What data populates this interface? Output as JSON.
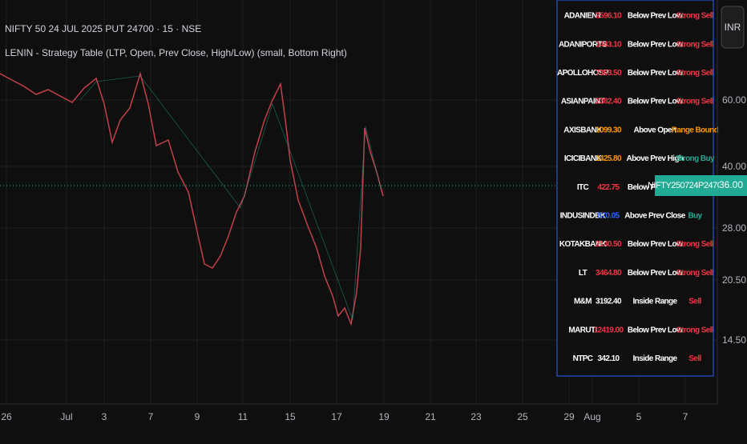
{
  "header": {
    "symbol": "NIFTY 50 24 JUL 2025 PUT 24700 · 15 · NSE",
    "indicator": "LENIN - Strategy Table (LTP, Open, Prev Close, High/Low) (small, Bottom Right)"
  },
  "currency": "INR",
  "price_axis": [
    "60.00",
    "40.00",
    "28.00",
    "20.50",
    "14.50"
  ],
  "last_price": {
    "symbol": "NIFTY250724P24700",
    "price": "36.00"
  },
  "time_axis": [
    "26",
    "Jul",
    "3",
    "7",
    "9",
    "11",
    "15",
    "17",
    "19",
    "21",
    "23",
    "25",
    "29",
    "Aug",
    "5",
    "7"
  ],
  "table": {
    "rows": [
      {
        "symbol": "ADANIENT",
        "ltp": "2596.10",
        "status": "Below Prev Low",
        "signal": "Strong Sell",
        "ltp_color": "#f23645",
        "signal_color": "#f23645"
      },
      {
        "symbol": "ADANIPORTS",
        "ltp": "1443.10",
        "status": "Below Prev Low",
        "signal": "Strong Sell",
        "ltp_color": "#f23645",
        "signal_color": "#f23645"
      },
      {
        "symbol": "APOLLOHOSP",
        "ltp": "7303.50",
        "status": "Below Prev Low",
        "signal": "Strong Sell",
        "ltp_color": "#f23645",
        "signal_color": "#f23645"
      },
      {
        "symbol": "ASIANPAINT",
        "ltp": "2382.40",
        "status": "Below Prev Low",
        "signal": "Strong Sell",
        "ltp_color": "#f23645",
        "signal_color": "#f23645"
      },
      {
        "symbol": "AXISBANK",
        "ltp": "1099.30",
        "status": "Above Open",
        "signal": "Range Bound",
        "ltp_color": "#ff9800",
        "signal_color": "#ff9800"
      },
      {
        "symbol": "ICICIBANK",
        "ltp": "1425.80",
        "status": "Above Prev High",
        "signal": "Strong Buy",
        "ltp_color": "#ff9800",
        "signal_color": "#22ab94"
      },
      {
        "symbol": "ITC",
        "ltp": "422.75",
        "status": "Below Prev Low",
        "signal": "Strong Sell",
        "ltp_color": "#f23645",
        "signal_color": "#f23645"
      },
      {
        "symbol": "INDUSINDBK",
        "ltp": "870.05",
        "status": "Above Prev Close",
        "signal": "Buy",
        "ltp_color": "#2962ff",
        "signal_color": "#22ab94"
      },
      {
        "symbol": "KOTAKBANK",
        "ltp": "2140.50",
        "status": "Below Prev Low",
        "signal": "Strong Sell",
        "ltp_color": "#f23645",
        "signal_color": "#f23645"
      },
      {
        "symbol": "LT",
        "ltp": "3464.80",
        "status": "Below Prev Low",
        "signal": "Strong Sell",
        "ltp_color": "#f23645",
        "signal_color": "#f23645"
      },
      {
        "symbol": "M&M",
        "ltp": "3192.40",
        "status": "Inside Range",
        "signal": "Sell",
        "ltp_color": "#ffffff",
        "signal_color": "#f23645"
      },
      {
        "symbol": "MARUTI",
        "ltp": "12419.00",
        "status": "Below Prev Low",
        "signal": "Strong Sell",
        "ltp_color": "#f23645",
        "signal_color": "#f23645"
      },
      {
        "symbol": "NTPC",
        "ltp": "342.10",
        "status": "Inside Range",
        "signal": "Sell",
        "ltp_color": "#ffffff",
        "signal_color": "#f23645"
      }
    ]
  }
}
